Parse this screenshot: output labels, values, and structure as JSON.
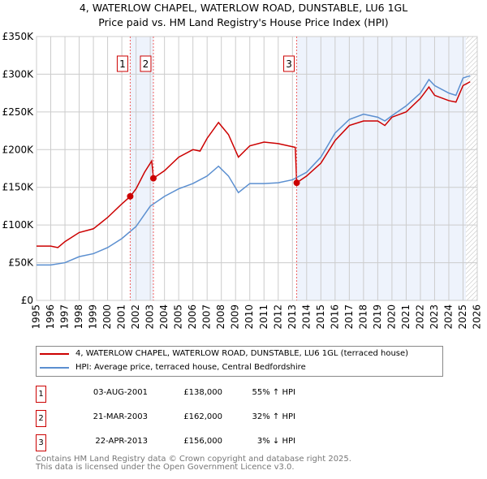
{
  "chart_data": {
    "type": "line",
    "title": "4, WATERLOW CHAPEL, WATERLOW ROAD, DUNSTABLE, LU6 1GL",
    "subtitle": "Price paid vs. HM Land Registry's House Price Index (HPI)",
    "xlim": [
      1995,
      2026
    ],
    "ylim": [
      0,
      350000
    ],
    "x_ticks": [
      "1995",
      "1996",
      "1997",
      "1998",
      "1999",
      "2000",
      "2001",
      "2002",
      "2003",
      "2004",
      "2005",
      "2006",
      "2007",
      "2008",
      "2009",
      "2010",
      "2011",
      "2012",
      "2013",
      "2014",
      "2015",
      "2016",
      "2017",
      "2018",
      "2019",
      "2020",
      "2021",
      "2022",
      "2023",
      "2024",
      "2025",
      "2026"
    ],
    "y_ticks": [
      {
        "v": 0,
        "label": "£0"
      },
      {
        "v": 50000,
        "label": "£50K"
      },
      {
        "v": 100000,
        "label": "£100K"
      },
      {
        "v": 150000,
        "label": "£150K"
      },
      {
        "v": 200000,
        "label": "£200K"
      },
      {
        "v": 250000,
        "label": "£250K"
      },
      {
        "v": 300000,
        "label": "£300K"
      },
      {
        "v": 350000,
        "label": "£350K"
      }
    ],
    "grid": true,
    "series": [
      {
        "name": "4, WATERLOW CHAPEL, WATERLOW ROAD, DUNSTABLE, LU6 1GL (terraced house)",
        "color": "#cc0000",
        "x": [
          1995,
          1996,
          1996.5,
          1997,
          1998,
          1999,
          2000,
          2001,
          2001.6,
          2002,
          2002.6,
          2003.1,
          2003.22,
          2004,
          2005,
          2006,
          2006.5,
          2007,
          2007.8,
          2008.5,
          2009.2,
          2010,
          2011,
          2012,
          2013.2,
          2013.3,
          2014,
          2015,
          2016,
          2017,
          2018,
          2019,
          2019.5,
          2020,
          2021,
          2022,
          2022.6,
          2023,
          2024,
          2024.5,
          2025,
          2025.5
        ],
        "y": [
          72000,
          72000,
          70000,
          78000,
          90000,
          95000,
          110000,
          128000,
          138000,
          148000,
          170000,
          185000,
          162000,
          172000,
          190000,
          200000,
          198000,
          215000,
          236000,
          220000,
          190000,
          205000,
          210000,
          208000,
          203000,
          156000,
          165000,
          182000,
          212000,
          232000,
          238000,
          238000,
          232000,
          243000,
          250000,
          268000,
          283000,
          272000,
          265000,
          263000,
          285000,
          290000
        ]
      },
      {
        "name": "HPI: Average price, terraced house, Central Bedfordshire",
        "color": "#5b8fd0",
        "x": [
          1995,
          1996,
          1997,
          1998,
          1999,
          2000,
          2001,
          2002,
          2003,
          2004,
          2005,
          2006,
          2007,
          2007.8,
          2008.5,
          2009.2,
          2010,
          2011,
          2012,
          2013,
          2014,
          2015,
          2016,
          2017,
          2018,
          2019,
          2019.5,
          2020,
          2021,
          2022,
          2022.6,
          2023,
          2024,
          2024.5,
          2025,
          2025.5
        ],
        "y": [
          47000,
          47000,
          50000,
          58000,
          62000,
          70000,
          82000,
          98000,
          125000,
          138000,
          148000,
          155000,
          165000,
          178000,
          165000,
          143000,
          155000,
          155000,
          156000,
          160000,
          170000,
          190000,
          222000,
          240000,
          247000,
          243000,
          238000,
          245000,
          258000,
          275000,
          293000,
          285000,
          275000,
          272000,
          295000,
          298000
        ]
      }
    ],
    "sales": [
      {
        "label": "1",
        "x": 2001.59,
        "y": 138000
      },
      {
        "label": "2",
        "x": 2003.22,
        "y": 162000
      },
      {
        "label": "3",
        "x": 2013.3,
        "y": 156000
      }
    ],
    "shaded": [
      [
        2001.59,
        2003.22
      ],
      [
        2013.3,
        2025.2
      ]
    ],
    "hatched_from": 2025.2
  },
  "legend": {
    "red": "4, WATERLOW CHAPEL, WATERLOW ROAD, DUNSTABLE, LU6 1GL (terraced house)",
    "blue": "HPI: Average price, terraced house, Central Bedfordshire"
  },
  "table": [
    {
      "num": "1",
      "date": "03-AUG-2001",
      "price": "£138,000",
      "hpi": "55% ↑ HPI"
    },
    {
      "num": "2",
      "date": "21-MAR-2003",
      "price": "£162,000",
      "hpi": "32% ↑ HPI"
    },
    {
      "num": "3",
      "date": "22-APR-2013",
      "price": "£156,000",
      "hpi": "3% ↓ HPI"
    }
  ],
  "footer": {
    "line1": "Contains HM Land Registry data © Crown copyright and database right 2025.",
    "line2": "This data is licensed under the Open Government Licence v3.0."
  }
}
